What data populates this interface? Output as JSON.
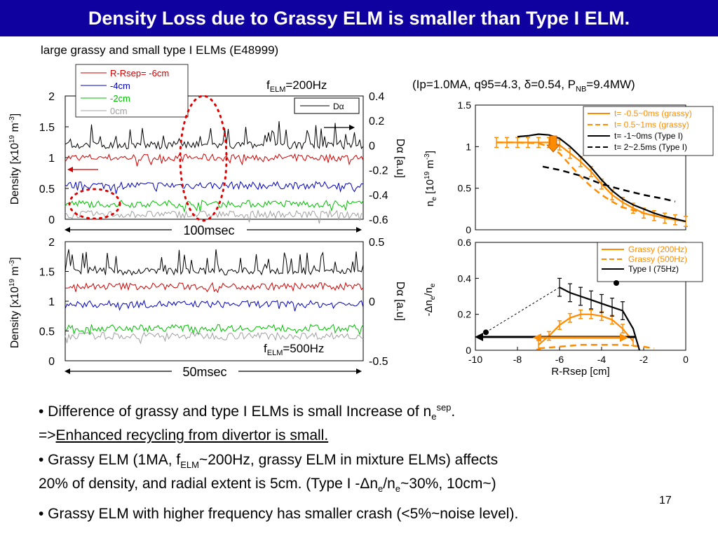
{
  "title": "Density Loss due to Grassy ELM is smaller than Type I ELM.",
  "subtitle": "large grassy and small type I ELMs (E48999)",
  "params": {
    "prefix": "(Ip=1.0MA, q95=4.3, ",
    "delta": "δ",
    "mid": "=0.54, P",
    "sub": "NB",
    "suffix": "=9.4MW)"
  },
  "left_panels": {
    "ylabel_main": "Density [x10",
    "ylabel_sup19": "19",
    "ylabel_mid": " m",
    "ylabel_supm3": "-3",
    "ylabel_end": "]",
    "right_ylabel": "Dα [a.u]"
  },
  "bullets": {
    "b1_text": "• Difference of grassy and type I ELMs is small Increase of n",
    "b1_sup": "sep",
    "b1_sub": "e",
    "b1_end": ".",
    "b1_prefix2": "=>",
    "b1_underlined": "Enhanced recycling from divertor is small.",
    "b2_a": "• Grassy ELM (1MA, f",
    "b2_sub": "ELM",
    "b2_b": "~200Hz, grassy ELM in mixture ELMs) affects",
    "b2_c": "20% of density, and radial extent is 5cm. (Type I  -Δn",
    "b2_sub2": "e",
    "b2_d": "/n",
    "b2_sub3": "e",
    "b2_e": "~30%, 10cm~)",
    "b3": "• Grassy ELM with higher frequency has smaller crash (<5%~noise level)."
  },
  "page_number": "17",
  "colors": {
    "title_bg": "#0f00a0",
    "red": "#d00000",
    "blue": "#0000c0",
    "green": "#00c000",
    "gray": "#a0a0a0",
    "orange": "#ff8c00"
  },
  "chart_data": [
    {
      "type": "line",
      "title": "",
      "freq_label": "f",
      "freq_sub": "ELM",
      "freq_value": "=200Hz",
      "ylim": [
        0,
        2
      ],
      "yticks": [
        "2",
        "1.5",
        "1",
        "0.5",
        "0"
      ],
      "right_yticks": [
        "0.4",
        "0.2",
        "0",
        "-0.2",
        "-0.4",
        "-0.6"
      ],
      "time_label": "100msec",
      "series": [
        {
          "name": "R-Rsep= -6cm",
          "color": "#d00000",
          "level": 1.0
        },
        {
          "name": "-4cm",
          "color": "#0000c0",
          "level": 0.55
        },
        {
          "name": "-2cm",
          "color": "#00c000",
          "level": 0.25
        },
        {
          "name": "0cm",
          "color": "#a0a0a0",
          "level": 0.08
        }
      ],
      "dalpha": {
        "name": "Dα",
        "level": 1.2
      }
    },
    {
      "type": "line",
      "title": "",
      "freq_label": "f",
      "freq_sub": "ELM",
      "freq_value": "=500Hz",
      "ylim": [
        0,
        2
      ],
      "yticks": [
        "2",
        "1.5",
        "1",
        "0.5",
        "0"
      ],
      "right_yticks": [
        "0.5",
        "0",
        "-0.5"
      ],
      "time_label": "50msec",
      "series": [
        {
          "color": "#d00000",
          "level": 1.25
        },
        {
          "color": "#0000c0",
          "level": 0.95
        },
        {
          "color": "#00c000",
          "level": 0.55
        },
        {
          "color": "#a0a0a0",
          "level": 0.42
        }
      ],
      "dalpha": {
        "level": 1.5
      }
    },
    {
      "type": "line",
      "ylabel_n": "n",
      "ylabel_sub": "e",
      "ylabel_rest": " [10",
      "ylabel_sup": "19",
      "ylabel_m": " m",
      "ylabel_sup2": "-3",
      "ylabel_end": "]",
      "xlim": [
        -10,
        0
      ],
      "ylim": [
        0,
        1.5
      ],
      "yticks": [
        "1.5",
        "1",
        "0.5",
        "0"
      ],
      "series": [
        {
          "name": "t= -0.5~0ms (grassy)",
          "color": "#ff8c00",
          "style": "solid",
          "x": [
            -9,
            -8.5,
            -8,
            -7.5,
            -7,
            -6.5,
            -6,
            -5.5,
            -5,
            -4.5,
            -4,
            -3.5,
            -3,
            -2.5,
            -2,
            -1.5,
            -1,
            -0.5,
            0
          ],
          "y": [
            1.05,
            1.05,
            1.05,
            1.05,
            1.05,
            1.05,
            1.02,
            0.92,
            0.82,
            0.7,
            0.55,
            0.42,
            0.33,
            0.26,
            0.2,
            0.17,
            0.14,
            0.12,
            0.1
          ]
        },
        {
          "name": "t= 0.5~1ms (grassy)",
          "color": "#ff8c00",
          "style": "dashed",
          "x": [
            -9,
            -8,
            -7,
            -6.5,
            -6,
            -5.5,
            -5,
            -4.5,
            -4,
            -3.5,
            -3,
            -2,
            -1,
            0
          ],
          "y": [
            1.05,
            1.05,
            1.04,
            1.0,
            0.92,
            0.78,
            0.64,
            0.52,
            0.42,
            0.34,
            0.27,
            0.2,
            0.14,
            0.1
          ]
        },
        {
          "name": "t= -1~0ms (Type I)",
          "color": "#000000",
          "style": "solid",
          "x": [
            -8,
            -7.5,
            -7,
            -6.5,
            -6,
            -5.5,
            -5,
            -4.5,
            -4,
            -3.5,
            -3,
            -2.5,
            -2,
            -1.5,
            -1,
            -0.5,
            0
          ],
          "y": [
            1.12,
            1.13,
            1.15,
            1.14,
            1.1,
            1.0,
            0.88,
            0.75,
            0.6,
            0.47,
            0.37,
            0.3,
            0.25,
            0.2,
            0.16,
            0.13,
            0.1
          ]
        },
        {
          "name": "t= 2~2.5ms (Type I)",
          "color": "#000000",
          "style": "dashed",
          "x": [
            -6.8,
            -6,
            -5,
            -4,
            -3,
            -2,
            -1,
            -0.5
          ],
          "y": [
            0.76,
            0.72,
            0.65,
            0.55,
            0.48,
            0.42,
            0.37,
            0.34
          ]
        }
      ]
    },
    {
      "type": "line",
      "ylabel": "-Δn",
      "ylabel_sub": "e",
      "ylabel_mid": "/n",
      "ylabel_sub2": "e",
      "xlabel": "R-Rsep [cm]",
      "xlim": [
        -10,
        0
      ],
      "ylim": [
        0,
        0.6
      ],
      "xticks": [
        "-10",
        "-8",
        "-6",
        "-4",
        "-2",
        "0"
      ],
      "yticks": [
        "0.6",
        "0.4",
        "0.2",
        "0"
      ],
      "series": [
        {
          "name": "Grassy (200Hz)",
          "color": "#ff8c00",
          "style": "solid",
          "x": [
            -7,
            -6.5,
            -6,
            -5.5,
            -5,
            -4.5,
            -4,
            -3.5,
            -3,
            -2.5
          ],
          "y": [
            0.03,
            0.08,
            0.14,
            0.18,
            0.2,
            0.2,
            0.19,
            0.17,
            0.12,
            0.05
          ]
        },
        {
          "name": "Grassy (500Hz)",
          "color": "#ff8c00",
          "style": "dashed",
          "x": [
            -7,
            -6,
            -5,
            -4,
            -3,
            -2,
            -1.5
          ],
          "y": [
            0.01,
            0.02,
            0.03,
            0.03,
            0.03,
            0.02,
            0.01
          ]
        },
        {
          "name": "Type I (75Hz)",
          "color": "#000000",
          "style": "solid",
          "x": [
            -6,
            -5.5,
            -5,
            -4.5,
            -4,
            -3.5,
            -3,
            -2.5,
            -2.2
          ],
          "y": [
            0.35,
            0.32,
            0.3,
            0.28,
            0.26,
            0.24,
            0.22,
            0.12,
            0.0
          ]
        }
      ],
      "point": {
        "x": -9.5,
        "y": 0.1
      }
    }
  ]
}
